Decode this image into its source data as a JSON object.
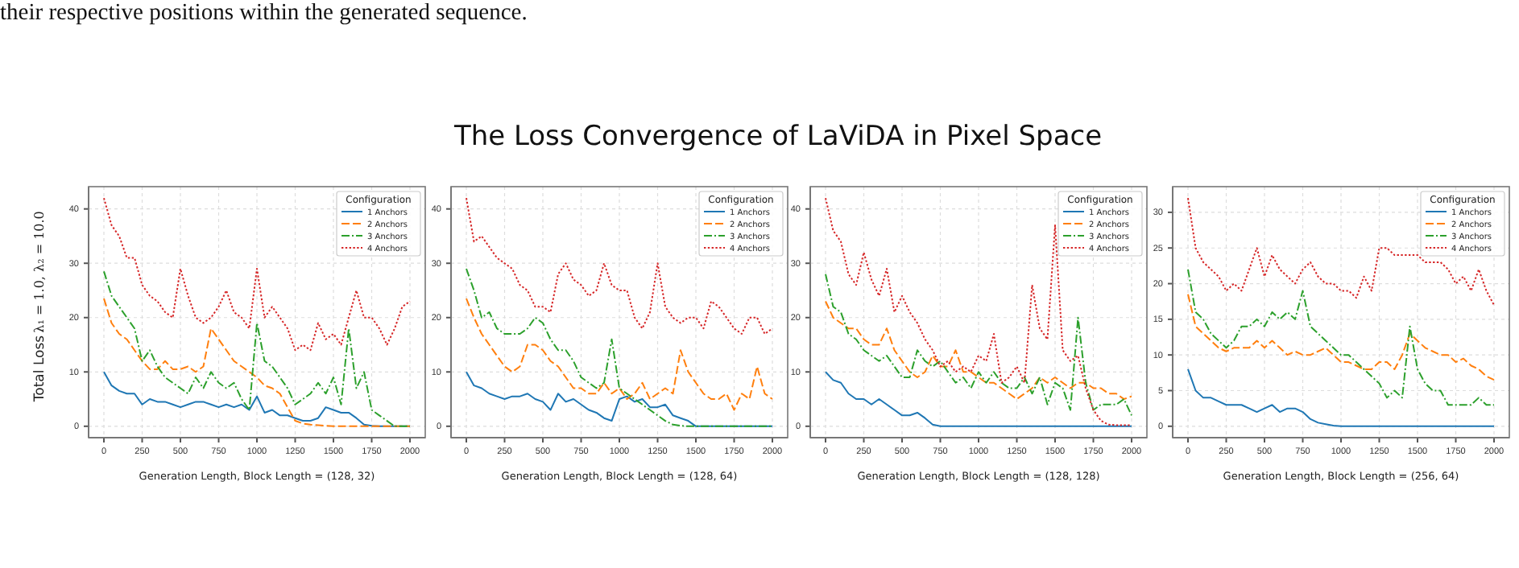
{
  "chart_data": [
    {
      "type": "other",
      "title": "The Loss Convergence of LaViDA in Pixel Space",
      "annotations": [
        "their respective positions within the generated sequence."
      ]
    },
    {
      "type": "line",
      "xlabel": "Generation Length, Block Length = (128, 32)",
      "ylabel": "Total Loss",
      "annotations": [
        "λ₁ = 1.0, λ₂ = 10.0"
      ],
      "legend_title": "Configuration",
      "legend": "top right",
      "grid": true,
      "x": [
        0,
        50,
        100,
        150,
        200,
        250,
        300,
        350,
        400,
        450,
        500,
        550,
        600,
        650,
        700,
        750,
        800,
        850,
        900,
        950,
        1000,
        1050,
        1100,
        1150,
        1200,
        1250,
        1300,
        1350,
        1400,
        1450,
        1500,
        1550,
        1600,
        1650,
        1700,
        1750,
        1800,
        1850,
        1900,
        1950,
        2000
      ],
      "xlim": [
        -100,
        2100
      ],
      "xticks": [
        0,
        250,
        500,
        750,
        1000,
        1250,
        1500,
        1750,
        2000
      ],
      "ylim": [
        -2.1,
        44.1
      ],
      "yticks": [
        0,
        10,
        20,
        30,
        40
      ],
      "series": [
        {
          "name": "1 Anchors",
          "color": "#1f77b4",
          "line_style": "solid",
          "values": [
            10,
            7.5,
            6.5,
            6,
            6,
            4,
            5,
            4.5,
            4.5,
            4,
            3.5,
            4,
            4.5,
            4.5,
            4,
            3.5,
            4,
            3.5,
            4,
            3,
            5.5,
            2.5,
            3,
            2,
            2,
            1.5,
            1,
            1,
            1.5,
            3.5,
            3,
            2.5,
            2.5,
            1.5,
            0.3,
            0.1,
            0,
            0,
            0,
            0,
            0
          ]
        },
        {
          "name": "2 Anchors",
          "color": "#ff7f0e",
          "line_style": "dashed",
          "values": [
            23.5,
            19,
            17,
            16,
            14,
            12,
            10.5,
            10.5,
            12,
            10.5,
            10.5,
            11,
            10,
            11,
            18,
            16,
            14,
            12,
            11,
            10,
            9,
            7.5,
            7,
            6,
            3.5,
            1,
            0.5,
            0.3,
            0.2,
            0.1,
            0,
            0,
            0,
            0,
            0,
            0,
            0,
            0,
            0,
            0,
            0
          ]
        },
        {
          "name": "3 Anchors",
          "color": "#2ca02c",
          "line_style": "dashdot",
          "values": [
            28.5,
            24,
            22,
            20,
            18,
            12,
            14,
            11,
            9,
            8,
            7,
            6,
            9,
            7,
            10,
            8,
            7,
            8,
            5,
            3,
            19,
            12,
            11,
            9,
            7,
            4,
            5,
            6,
            8,
            6,
            9,
            4,
            18,
            7,
            10,
            3,
            2,
            1,
            0,
            0,
            0
          ]
        },
        {
          "name": "4 Anchors",
          "color": "#d62728",
          "line_style": "dotted",
          "values": [
            42,
            37,
            35,
            31,
            31,
            26,
            24,
            23,
            21,
            20,
            29,
            24,
            20,
            19,
            20,
            22,
            25,
            21,
            20,
            18,
            29,
            20,
            22,
            20,
            18,
            14,
            15,
            14,
            19,
            16,
            17,
            15,
            20,
            25,
            20,
            20,
            18,
            15,
            18,
            22,
            23
          ]
        }
      ]
    },
    {
      "type": "line",
      "xlabel": "Generation Length, Block Length = (128, 64)",
      "legend_title": "Configuration",
      "legend": "top right",
      "grid": true,
      "x": [
        0,
        50,
        100,
        150,
        200,
        250,
        300,
        350,
        400,
        450,
        500,
        550,
        600,
        650,
        700,
        750,
        800,
        850,
        900,
        950,
        1000,
        1050,
        1100,
        1150,
        1200,
        1250,
        1300,
        1350,
        1400,
        1450,
        1500,
        1550,
        1600,
        1650,
        1700,
        1750,
        1800,
        1850,
        1900,
        1950,
        2000
      ],
      "xlim": [
        -100,
        2100
      ],
      "xticks": [
        0,
        250,
        500,
        750,
        1000,
        1250,
        1500,
        1750,
        2000
      ],
      "ylim": [
        -2.1,
        44.1
      ],
      "yticks": [
        0,
        10,
        20,
        30,
        40
      ],
      "series": [
        {
          "name": "1 Anchors",
          "color": "#1f77b4",
          "line_style": "solid",
          "values": [
            10,
            7.5,
            7,
            6,
            5.5,
            5,
            5.5,
            5.5,
            6,
            5,
            4.5,
            3,
            6,
            4.5,
            5,
            4,
            3,
            2.5,
            1.5,
            1,
            5,
            5.5,
            4.5,
            5,
            3.5,
            3.5,
            4,
            2,
            1.5,
            1,
            0,
            0,
            0,
            0,
            0,
            0,
            0,
            0,
            0,
            0,
            0
          ]
        },
        {
          "name": "2 Anchors",
          "color": "#ff7f0e",
          "line_style": "dashed",
          "values": [
            23.5,
            20,
            17,
            15,
            13,
            11,
            10,
            11,
            15,
            15,
            14,
            12,
            11,
            9,
            7,
            7,
            6,
            6,
            8,
            6,
            7,
            5,
            6,
            8,
            5,
            6,
            7,
            6,
            14,
            10,
            8,
            6,
            5,
            5,
            6,
            3,
            6,
            5,
            11,
            6,
            5
          ]
        },
        {
          "name": "3 Anchors",
          "color": "#2ca02c",
          "line_style": "dashdot",
          "values": [
            29,
            25,
            20,
            21,
            18,
            17,
            17,
            17,
            18,
            20,
            19,
            16,
            14,
            14,
            12,
            9,
            8,
            7,
            8,
            16,
            7,
            6,
            5,
            4,
            3,
            2,
            1,
            0.3,
            0.1,
            0,
            0,
            0,
            0,
            0,
            0,
            0,
            0,
            0,
            0,
            0,
            0
          ]
        },
        {
          "name": "4 Anchors",
          "color": "#d62728",
          "line_style": "dotted",
          "values": [
            42,
            34,
            35,
            33,
            31,
            30,
            29,
            26,
            25,
            22,
            22,
            21,
            28,
            30,
            27,
            26,
            24,
            25,
            30,
            26,
            25,
            25,
            20,
            18,
            21,
            30,
            22,
            20,
            19,
            20,
            20,
            18,
            23,
            22,
            20,
            18,
            17,
            20,
            20,
            17,
            18
          ]
        }
      ]
    },
    {
      "type": "line",
      "xlabel": "Generation Length, Block Length = (128, 128)",
      "legend_title": "Configuration",
      "legend": "top right",
      "grid": true,
      "x": [
        0,
        50,
        100,
        150,
        200,
        250,
        300,
        350,
        400,
        450,
        500,
        550,
        600,
        650,
        700,
        750,
        800,
        850,
        900,
        950,
        1000,
        1050,
        1100,
        1150,
        1200,
        1250,
        1300,
        1350,
        1400,
        1450,
        1500,
        1550,
        1600,
        1650,
        1700,
        1750,
        1800,
        1850,
        1900,
        1950,
        2000
      ],
      "xlim": [
        -100,
        2100
      ],
      "xticks": [
        0,
        250,
        500,
        750,
        1000,
        1250,
        1500,
        1750,
        2000
      ],
      "ylim": [
        -2.1,
        44.1
      ],
      "yticks": [
        0,
        10,
        20,
        30,
        40
      ],
      "series": [
        {
          "name": "1 Anchors",
          "color": "#1f77b4",
          "line_style": "solid",
          "values": [
            10,
            8.5,
            8,
            6,
            5,
            5,
            4,
            5,
            4,
            3,
            2,
            2,
            2.5,
            1.5,
            0.3,
            0,
            0,
            0,
            0,
            0,
            0,
            0,
            0,
            0,
            0,
            0,
            0,
            0,
            0,
            0,
            0,
            0,
            0,
            0,
            0,
            0,
            0,
            0,
            0,
            0,
            0
          ]
        },
        {
          "name": "2 Anchors",
          "color": "#ff7f0e",
          "line_style": "dashed",
          "values": [
            23,
            20,
            19,
            18,
            18,
            16,
            15,
            15,
            18,
            14,
            12,
            10,
            9,
            10,
            13,
            11,
            11,
            14,
            10,
            10,
            9,
            8,
            8,
            7,
            6,
            5,
            6,
            7,
            9,
            8,
            9,
            8,
            7,
            8,
            8,
            7,
            7,
            6,
            6,
            5,
            5.5
          ]
        },
        {
          "name": "3 Anchors",
          "color": "#2ca02c",
          "line_style": "dashdot",
          "values": [
            28,
            22,
            21,
            17,
            16,
            14,
            13,
            12,
            13,
            11,
            9,
            9,
            14,
            12,
            11,
            12,
            10,
            8,
            9,
            7,
            10,
            8,
            10,
            8,
            7,
            7,
            9,
            6,
            9,
            4,
            8,
            7,
            3,
            20,
            8,
            3,
            4,
            4,
            4,
            5,
            2
          ]
        },
        {
          "name": "4 Anchors",
          "color": "#d62728",
          "line_style": "dotted",
          "values": [
            42,
            36,
            34,
            28,
            26,
            32,
            27,
            24,
            29,
            21,
            24,
            21,
            19,
            16,
            14,
            11,
            12,
            10,
            11,
            10,
            13,
            12,
            17,
            8,
            9,
            11,
            8,
            26,
            18,
            16,
            37,
            14,
            12,
            13,
            7,
            3,
            1,
            0.3,
            0.2,
            0.2,
            0.2
          ]
        }
      ]
    },
    {
      "type": "line",
      "xlabel": "Generation Length, Block Length = (256, 64)",
      "legend_title": "Configuration",
      "legend": "top right",
      "grid": true,
      "x": [
        0,
        50,
        100,
        150,
        200,
        250,
        300,
        350,
        400,
        450,
        500,
        550,
        600,
        650,
        700,
        750,
        800,
        850,
        900,
        950,
        1000,
        1050,
        1100,
        1150,
        1200,
        1250,
        1300,
        1350,
        1400,
        1450,
        1500,
        1550,
        1600,
        1650,
        1700,
        1750,
        1800,
        1850,
        1900,
        1950,
        2000
      ],
      "xlim": [
        -100,
        2100
      ],
      "xticks": [
        0,
        250,
        500,
        750,
        1000,
        1250,
        1500,
        1750,
        2000
      ],
      "ylim": [
        -1.6,
        33.6
      ],
      "yticks": [
        0,
        5,
        10,
        15,
        20,
        25,
        30
      ],
      "series": [
        {
          "name": "1 Anchors",
          "color": "#1f77b4",
          "line_style": "solid",
          "values": [
            8,
            5,
            4,
            4,
            3.5,
            3,
            3,
            3,
            2.5,
            2,
            2.5,
            3,
            2,
            2.5,
            2.5,
            2,
            1,
            0.5,
            0.3,
            0.1,
            0,
            0,
            0,
            0,
            0,
            0,
            0,
            0,
            0,
            0,
            0,
            0,
            0,
            0,
            0,
            0,
            0,
            0,
            0,
            0,
            0
          ]
        },
        {
          "name": "2 Anchors",
          "color": "#ff7f0e",
          "line_style": "dashed",
          "values": [
            18.5,
            14,
            13,
            12,
            11,
            10.5,
            11,
            11,
            11,
            12,
            11,
            12,
            11,
            10,
            10.5,
            10,
            10,
            10.5,
            11,
            10,
            9,
            9,
            8.5,
            8,
            8,
            9,
            9,
            8,
            10,
            13,
            12,
            11,
            10.5,
            10,
            10,
            9,
            9.5,
            8.5,
            8,
            7,
            6.5
          ]
        },
        {
          "name": "3 Anchors",
          "color": "#2ca02c",
          "line_style": "dashdot",
          "values": [
            22,
            16,
            15,
            13,
            12,
            11,
            12,
            14,
            14,
            15,
            14,
            16,
            15,
            16,
            15,
            19,
            14,
            13,
            12,
            11,
            10,
            10,
            9,
            8,
            7,
            6,
            4,
            5,
            4,
            14,
            8,
            6,
            5,
            5,
            3,
            3,
            3,
            3,
            4,
            3,
            3
          ]
        },
        {
          "name": "4 Anchors",
          "color": "#d62728",
          "line_style": "dotted",
          "values": [
            32,
            25,
            23,
            22,
            21,
            19,
            20,
            19,
            22,
            25,
            21,
            24,
            22,
            21,
            20,
            22,
            23,
            21,
            20,
            20,
            19,
            19,
            18,
            21,
            19,
            25,
            25,
            24,
            24,
            24,
            24,
            23,
            23,
            23,
            22,
            20,
            21,
            19,
            22,
            19,
            17
          ]
        }
      ]
    }
  ]
}
